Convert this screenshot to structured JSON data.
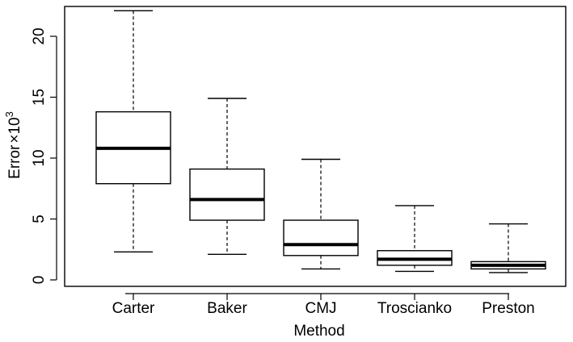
{
  "chart_data": {
    "type": "boxplot",
    "title": "",
    "xlabel": "Method",
    "ylabel_text": "Error",
    "ylabel_multiply": "×",
    "ylabel_base": "10",
    "ylabel_exponent": "3",
    "ylim": [
      0,
      23
    ],
    "yticks": [
      0,
      5,
      10,
      15,
      20
    ],
    "grid": false,
    "categories": [
      "Carter",
      "Baker",
      "CMJ",
      "Troscianko",
      "Preston"
    ],
    "boxes": [
      {
        "name": "Carter",
        "min": 2.3,
        "q1": 7.9,
        "median": 10.8,
        "q3": 13.8,
        "max": 22.1
      },
      {
        "name": "Baker",
        "min": 2.1,
        "q1": 4.9,
        "median": 6.6,
        "q3": 9.1,
        "max": 14.9
      },
      {
        "name": "CMJ",
        "min": 0.9,
        "q1": 2.0,
        "median": 2.9,
        "q3": 4.9,
        "max": 9.9
      },
      {
        "name": "Troscianko",
        "min": 0.7,
        "q1": 1.2,
        "median": 1.7,
        "q3": 2.4,
        "max": 6.1
      },
      {
        "name": "Preston",
        "min": 0.6,
        "q1": 0.9,
        "median": 1.2,
        "q3": 1.5,
        "max": 4.6
      }
    ]
  }
}
